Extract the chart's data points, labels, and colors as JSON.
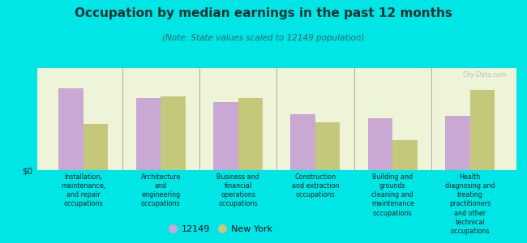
{
  "title": "Occupation by median earnings in the past 12 months",
  "subtitle": "(Note: State values scaled to 12149 population)",
  "categories": [
    "Installation,\nmaintenance,\nand repair\noccupations",
    "Architecture\nand\nengineering\noccupations",
    "Business and\nfinancial\noperations\noccupations",
    "Construction\nand extraction\noccupations",
    "Building and\ngrounds\ncleaning and\nmaintenance\noccupations",
    "Health\ndiagnosing and\ntreating\npractitioners\nand other\ntechnical\noccupations"
  ],
  "values_12149": [
    0.82,
    0.72,
    0.68,
    0.56,
    0.52,
    0.54
  ],
  "values_ny": [
    0.46,
    0.74,
    0.72,
    0.48,
    0.3,
    0.8
  ],
  "color_12149": "#c9a8d4",
  "color_ny": "#c5c87a",
  "background_color": "#00e5e5",
  "plot_bg": "#eef4d8",
  "title_color": "#1a3333",
  "subtitle_color": "#336666",
  "legend_label_12149": "12149",
  "legend_label_ny": "New York",
  "ylabel": "$0",
  "bar_width": 0.32,
  "watermark": "City-Data.com"
}
